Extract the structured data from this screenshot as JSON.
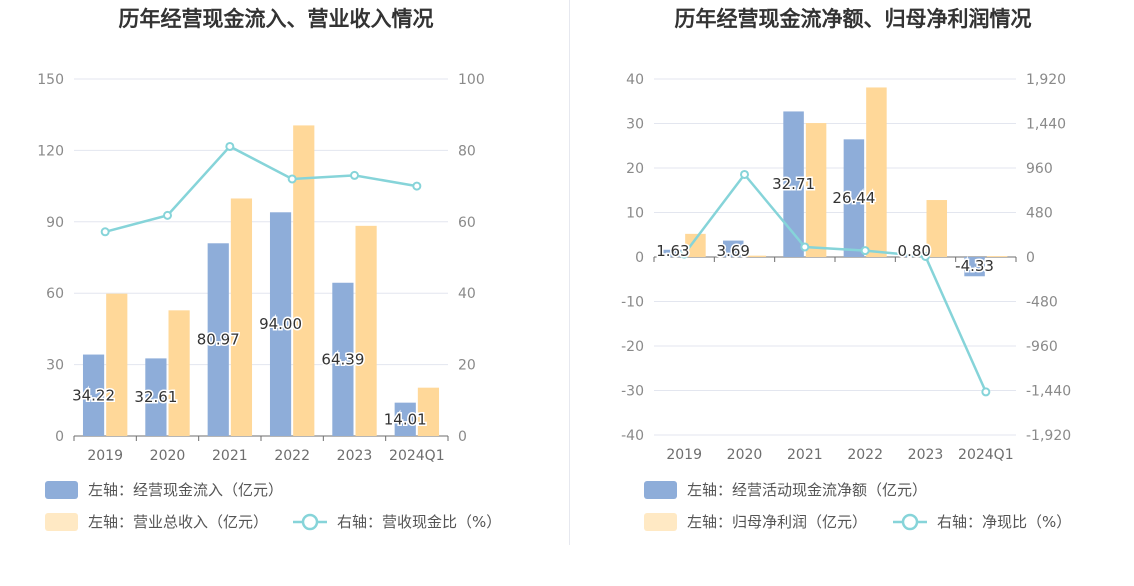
{
  "colors": {
    "bar_primary": "#8eadd9",
    "bar_secondary": "#ffd899",
    "legend_secondary": "#ffe9c4",
    "line": "#86d4d9",
    "grid": "#e3e6ef",
    "axis": "#6e6e6e"
  },
  "chart_data": [
    {
      "type": "bar",
      "title": "历年经营现金流入、营业收入情况",
      "categories": [
        "2019",
        "2020",
        "2021",
        "2022",
        "2023",
        "2024Q1"
      ],
      "ylim_left": [
        0,
        150
      ],
      "yticks_left": [
        "0",
        "30",
        "60",
        "90",
        "120",
        "150"
      ],
      "ylim_right": [
        0,
        100
      ],
      "yticks_right": [
        "0",
        "20",
        "40",
        "60",
        "80",
        "100"
      ],
      "series": [
        {
          "name": "左轴：经营现金流入（亿元）",
          "axis": "left",
          "type": "bar",
          "values": [
            34.22,
            32.61,
            80.97,
            94.0,
            64.39,
            14.01
          ],
          "labels": [
            "34.22",
            "32.61",
            "80.97",
            "94.00",
            "64.39",
            "14.01"
          ]
        },
        {
          "name": "左轴：营业总收入（亿元）",
          "axis": "left",
          "type": "bar",
          "values": [
            59.8,
            52.8,
            99.8,
            130.5,
            88.3,
            20.3
          ]
        },
        {
          "name": "右轴：营收现金比（%）",
          "axis": "right",
          "type": "line",
          "values": [
            57.2,
            61.8,
            81.1,
            72.0,
            73.0,
            70.0
          ]
        }
      ],
      "legend_position": "bottom-left",
      "grid": true
    },
    {
      "type": "bar",
      "title": "历年经营现金流净额、归母净利润情况",
      "categories": [
        "2019",
        "2020",
        "2021",
        "2022",
        "2023",
        "2024Q1"
      ],
      "ylim_left": [
        -40,
        40
      ],
      "yticks_left": [
        "-40",
        "-30",
        "-20",
        "-10",
        "0",
        "10",
        "20",
        "30",
        "40"
      ],
      "ylim_right": [
        -1920,
        1920
      ],
      "yticks_right": [
        "-1,920",
        "-1,440",
        "-960",
        "-480",
        "0",
        "480",
        "960",
        "1,440",
        "1,920"
      ],
      "series": [
        {
          "name": "左轴：经营活动现金流净额（亿元）",
          "axis": "left",
          "type": "bar",
          "values": [
            1.63,
            3.69,
            32.71,
            26.44,
            0.8,
            -4.33
          ],
          "labels": [
            "1.63",
            "3.69",
            "32.71",
            "26.44",
            "0.80",
            "-4.33"
          ]
        },
        {
          "name": "左轴：归母净利润（亿元）",
          "axis": "left",
          "type": "bar",
          "values": [
            5.2,
            0.3,
            30.1,
            38.1,
            12.8,
            0.2
          ]
        },
        {
          "name": "右轴：净现比（%）",
          "axis": "right",
          "type": "line",
          "values": [
            31,
            890,
            108,
            69,
            6,
            -1455
          ]
        }
      ],
      "legend_position": "bottom-left",
      "grid": true
    }
  ]
}
